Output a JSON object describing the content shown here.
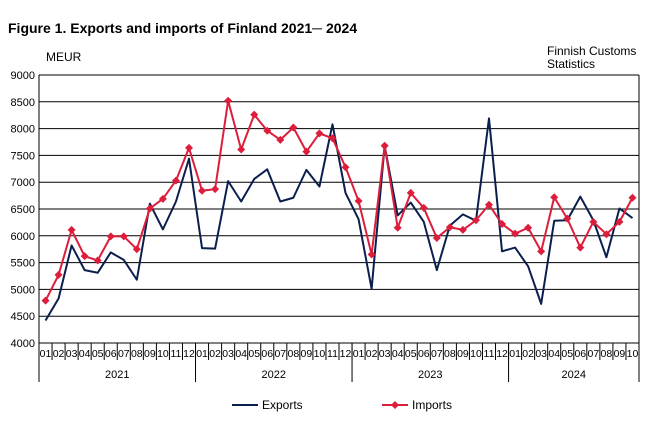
{
  "figure": {
    "title": "Figure 1. Exports and imports of Finland 2021─ 2024",
    "unit_label": "MEUR",
    "source_line1": "Finnish Customs",
    "source_line2": "Statistics"
  },
  "chart_data": {
    "type": "line",
    "title": "Figure 1. Exports and imports of Finland 2021─ 2024",
    "ylabel": "MEUR",
    "xlabel": "",
    "ylim": [
      4000,
      9000
    ],
    "ytick_step": 500,
    "grid": true,
    "legend_position": "bottom-center",
    "years": [
      {
        "label": "2021",
        "months": 12
      },
      {
        "label": "2022",
        "months": 12
      },
      {
        "label": "2023",
        "months": 12
      },
      {
        "label": "2024",
        "months": 10
      }
    ],
    "x": [
      "01",
      "02",
      "03",
      "04",
      "05",
      "06",
      "07",
      "08",
      "09",
      "10",
      "11",
      "12",
      "01",
      "02",
      "03",
      "04",
      "05",
      "06",
      "07",
      "08",
      "09",
      "10",
      "11",
      "12",
      "01",
      "02",
      "03",
      "04",
      "05",
      "06",
      "07",
      "08",
      "09",
      "10",
      "11",
      "12",
      "01",
      "02",
      "03",
      "04",
      "05",
      "06",
      "07",
      "08",
      "09",
      "10"
    ],
    "series": [
      {
        "name": "Exports",
        "color": "#0b1f4f",
        "marker": "none",
        "values": [
          4420,
          4830,
          5820,
          5360,
          5310,
          5690,
          5550,
          5180,
          6600,
          6120,
          6640,
          7440,
          5770,
          5760,
          7020,
          6640,
          7060,
          7240,
          6640,
          6710,
          7230,
          6920,
          8080,
          6800,
          6310,
          5010,
          7680,
          6380,
          6620,
          6260,
          5360,
          6190,
          6400,
          6280,
          8190,
          5710,
          5780,
          5430,
          4730,
          6280,
          6290,
          6730,
          6290,
          5600,
          6510,
          6330
        ]
      },
      {
        "name": "Imports",
        "color": "#dc1e3c",
        "marker": "diamond",
        "values": [
          4790,
          5270,
          6110,
          5620,
          5540,
          5990,
          5990,
          5750,
          6510,
          6690,
          7030,
          7640,
          6840,
          6870,
          8520,
          7610,
          8260,
          7960,
          7790,
          8020,
          7570,
          7910,
          7820,
          7280,
          6650,
          5650,
          7680,
          6150,
          6800,
          6520,
          5960,
          6160,
          6110,
          6290,
          6580,
          6220,
          6040,
          6150,
          5710,
          6720,
          6320,
          5780,
          6260,
          6030,
          6260,
          6710
        ]
      }
    ]
  }
}
